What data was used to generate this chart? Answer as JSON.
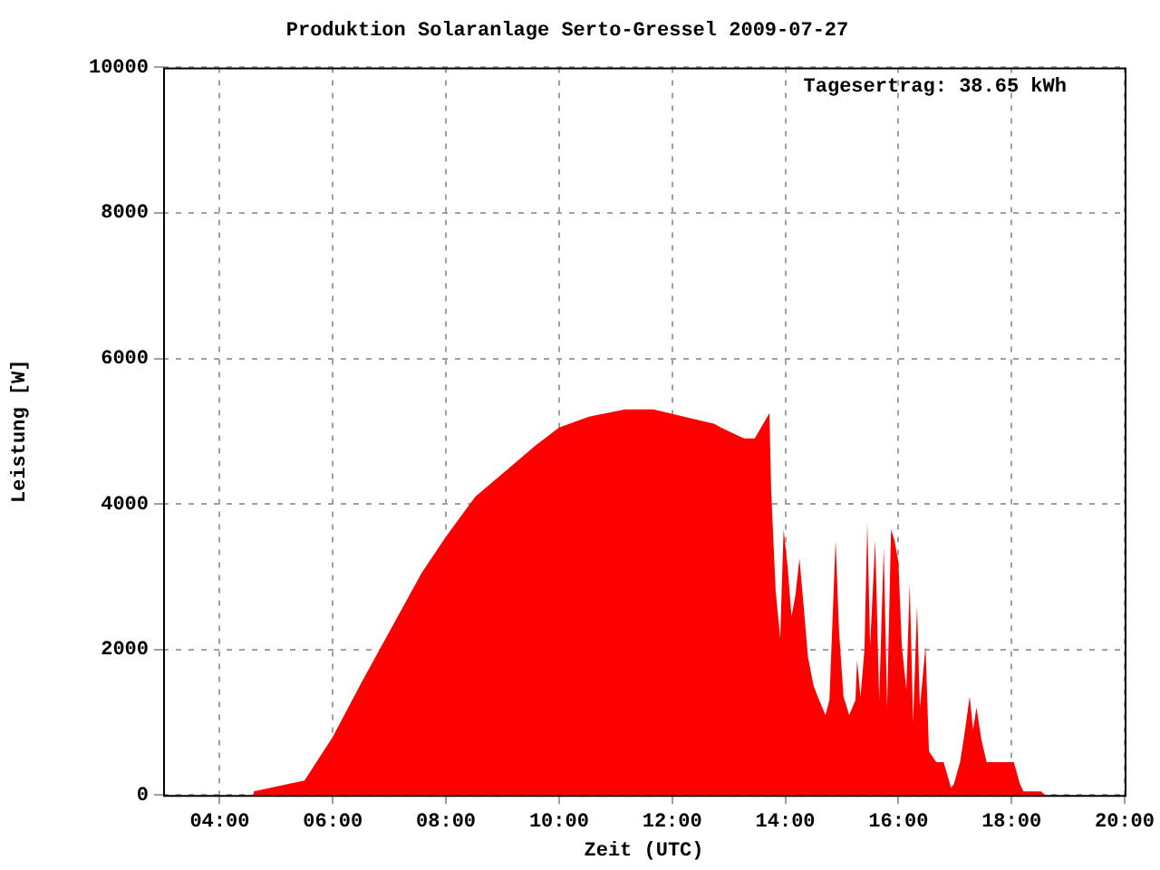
{
  "chart_data": {
    "type": "area",
    "title": "Produktion Solaranlage Serto-Gressel 2009-07-27",
    "xlabel": "Zeit (UTC)",
    "ylabel": "Leistung [W]",
    "annotations": [
      "Tagesertrag: 38.65 kWh"
    ],
    "x": [
      4.6,
      4.9,
      5.5,
      6.0,
      6.51,
      7.04,
      7.57,
      8.0,
      8.52,
      9.05,
      9.58,
      10.0,
      10.53,
      11.17,
      11.67,
      12.75,
      12.86,
      13.27,
      13.46,
      13.72,
      13.75,
      13.83,
      13.91,
      13.97,
      14.04,
      14.11,
      14.18,
      14.25,
      14.33,
      14.4,
      14.5,
      14.6,
      14.71,
      14.78,
      14.89,
      14.95,
      15.03,
      15.13,
      15.24,
      15.27,
      15.33,
      15.4,
      15.45,
      15.5,
      15.59,
      15.66,
      15.74,
      15.8,
      15.87,
      15.93,
      16.0,
      16.06,
      16.14,
      16.2,
      16.26,
      16.33,
      16.38,
      16.48,
      16.54,
      16.67,
      16.8,
      16.93,
      16.98,
      17.09,
      17.17,
      17.26,
      17.32,
      17.38,
      17.47,
      17.56,
      17.78,
      17.94,
      18.04,
      18.15,
      18.21,
      18.31,
      18.52,
      18.6
    ],
    "series": [
      {
        "color": "#ff0000",
        "values": [
          50,
          100,
          200,
          800,
          1550,
          2300,
          3050,
          3550,
          4100,
          4450,
          4800,
          5050,
          5200,
          5300,
          5300,
          5100,
          5050,
          4900,
          4900,
          5250,
          4200,
          2800,
          2150,
          3650,
          3150,
          2450,
          2750,
          3250,
          2550,
          1900,
          1500,
          1300,
          1100,
          1300,
          3500,
          2250,
          1350,
          1100,
          1300,
          1850,
          1350,
          2000,
          3750,
          2050,
          3500,
          1300,
          3400,
          1200,
          3650,
          3500,
          3200,
          2050,
          1450,
          2900,
          1000,
          2600,
          1200,
          2050,
          600,
          450,
          450,
          100,
          150,
          450,
          850,
          1350,
          900,
          1200,
          750,
          450,
          450,
          450,
          450,
          150,
          50,
          50,
          50,
          0
        ]
      }
    ],
    "xlim": [
      3,
      20
    ],
    "xticks": [
      {
        "value": 4,
        "label": "04:00"
      },
      {
        "value": 6,
        "label": "06:00"
      },
      {
        "value": 8,
        "label": "08:00"
      },
      {
        "value": 10,
        "label": "10:00"
      },
      {
        "value": 12,
        "label": "12:00"
      },
      {
        "value": 14,
        "label": "14:00"
      },
      {
        "value": 16,
        "label": "16:00"
      },
      {
        "value": 18,
        "label": "18:00"
      },
      {
        "value": 20,
        "label": "20:00"
      }
    ],
    "ylim": [
      0,
      10000
    ],
    "yticks": [
      0,
      2000,
      4000,
      6000,
      8000,
      10000
    ],
    "grid": true,
    "legend": false
  }
}
